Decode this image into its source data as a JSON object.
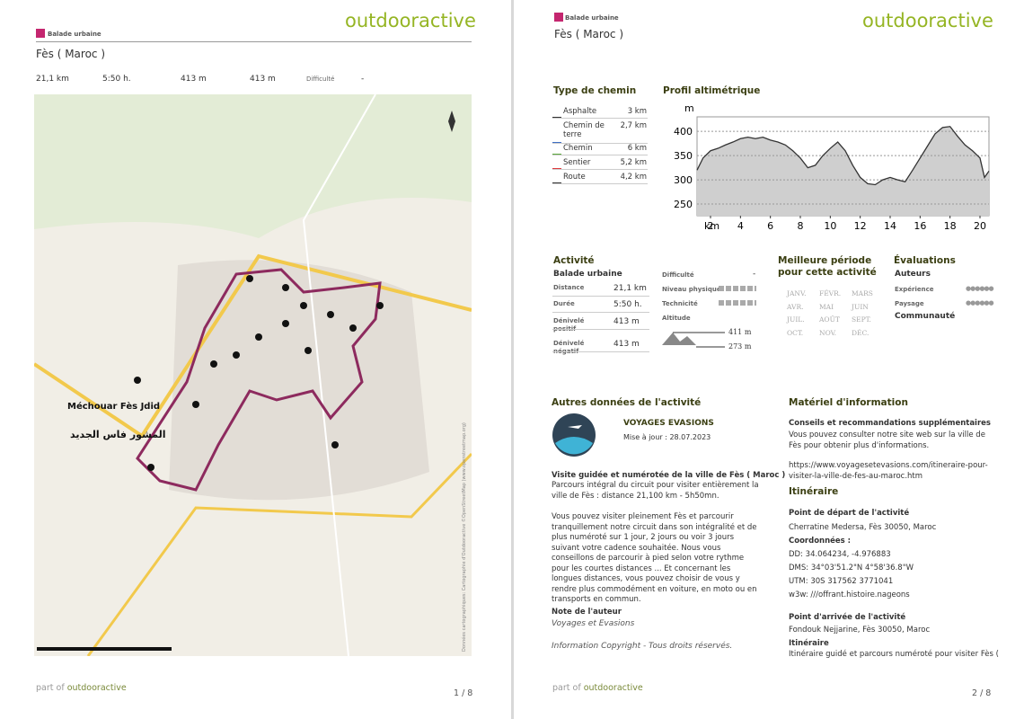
{
  "pages": [
    {
      "brand": "outdooractive",
      "category": "Balade urbaine",
      "title": "Fès ( Maroc )",
      "stats": [
        "21,1 km",
        "5:50 h.",
        "413 m",
        "413 m",
        "Difficulté",
        "-"
      ],
      "map_labels": [
        "Méchouar Fès Jdid",
        "المشور فاس الجديد"
      ],
      "map_credit": "Données cartographiques: Cartographie d'Outdooractive ©OpenStreetMap (www.openstreetmap.org)",
      "footer": {
        "prefix": "part of",
        "brand": "outdooractive",
        "page": "1 / 8"
      }
    },
    {
      "brand": "outdooractive",
      "category": "Balade urbaine",
      "title": "Fès ( Maroc )",
      "path_types": {
        "heading": "Type de chemin",
        "rows": [
          {
            "name": "Asphalte",
            "value": "3 km",
            "color": "#333333"
          },
          {
            "name": "Chemin de terre",
            "value": "2,7 km",
            "color": "#3f6fc4"
          },
          {
            "name": "Chemin",
            "value": "6 km",
            "color": "#5aa83a"
          },
          {
            "name": "Sentier",
            "value": "5,2 km",
            "color": "#e0393e"
          },
          {
            "name": "Route",
            "value": "4,2 km",
            "color": "#333333"
          }
        ]
      },
      "profile": {
        "type": "area",
        "heading": "Profil altimétrique",
        "y_unit": "m",
        "x_unit": "km",
        "x": [
          1.1,
          1.5,
          2,
          2.5,
          3,
          3.5,
          4,
          4.5,
          5,
          5.5,
          6,
          6.5,
          7,
          7.5,
          8,
          8.5,
          9,
          9.5,
          10,
          10.5,
          11,
          11.5,
          12,
          12.5,
          13,
          13.5,
          14,
          14.5,
          15,
          15.5,
          16,
          16.5,
          17,
          17.5,
          18,
          18.5,
          19,
          19.5,
          20,
          20.3,
          20.6
        ],
        "values": [
          320,
          345,
          360,
          365,
          372,
          378,
          385,
          388,
          385,
          388,
          382,
          378,
          372,
          360,
          345,
          325,
          330,
          350,
          365,
          378,
          360,
          330,
          305,
          292,
          290,
          300,
          305,
          300,
          296,
          320,
          345,
          370,
          395,
          408,
          410,
          390,
          372,
          360,
          345,
          305,
          318
        ],
        "xlim": [
          1.1,
          20.6
        ],
        "ylim": [
          226,
          430
        ],
        "xticks": [
          2,
          4,
          6,
          8,
          10,
          12,
          14,
          16,
          18,
          20
        ],
        "yticks": [
          250,
          300,
          350,
          400
        ],
        "grid": true,
        "color": "#333333",
        "fill": "#cfcfcf"
      },
      "activity": {
        "heading": "Activité",
        "kind": "Balade urbaine",
        "rows": [
          {
            "name": "Distance",
            "value": "21,1 km"
          },
          {
            "name": "Durée",
            "value": "5:50 h."
          },
          {
            "name": "Dénivelé positif",
            "value": "413 m"
          },
          {
            "name": "Dénivelé négatif",
            "value": "413 m"
          }
        ],
        "difficulty_label": "Difficulté",
        "difficulty": "-",
        "physical": "Niveau physique",
        "technique": "Technicité",
        "altitude": "Altitude",
        "alt_max": "411 m",
        "alt_min": "273 m"
      },
      "season": {
        "heading": "Meilleure période pour cette activité",
        "months": [
          "JANV.",
          "FÉVR.",
          "MARS",
          "AVR.",
          "MAI",
          "JUIN",
          "JUIL.",
          "AOÛT",
          "SEPT.",
          "OCT.",
          "NOV.",
          "DÉC."
        ]
      },
      "ratings": {
        "heading": "Évaluations",
        "authors": "Auteurs",
        "experience": "Expérience",
        "landscape": "Paysage",
        "community": "Communauté"
      },
      "other": {
        "heading": "Autres données de l'activité",
        "author": "VOYAGES EVASIONS",
        "updated": "Mise à jour : 28.07.2023",
        "desc_title": "Visite guidée et numérotée de la ville de Fès ( Maroc )",
        "desc1": "Parcours intégral du circuit pour visiter entièrement la ville de Fès : distance 21,100 km - 5h50mn.",
        "desc2": "Vous pouvez visiter pleinement Fès et parcourir tranquillement notre circuit dans son intégralité et de plus numéroté sur 1 jour, 2 jours ou voir 3 jours suivant votre cadence souhaitée. Nous vous conseillons de parcourir à pied selon votre rythme pour les courtes distances ... Et concernant les longues distances, vous pouvez choisir de vous y rendre plus commodément en voiture, en moto ou en transports en commun.",
        "note_heading": "Note de l'auteur",
        "note": "Voyages et Evasions",
        "copyright": "Information Copyright - Tous droits réservés."
      },
      "info": {
        "heading": "Matériel d'information",
        "tips_heading": "Conseils et recommandations supplémentaires",
        "tips": "Vous pouvez consulter notre site web sur la ville de Fès pour obtenir plus d'informations.",
        "url": "https://www.voyagesetevasions.com/itineraire-pour-visiter-la-ville-de-fes-au-maroc.htm"
      },
      "route": {
        "heading": "Itinéraire",
        "start_heading": "Point de départ de l'activité",
        "start": "Cherratine Medersa, Fès 30050, Maroc",
        "coords_heading": "Coordonnées :",
        "dd": "DD: 34.064234, -4.976883",
        "dms": "DMS: 34°03'51.2\"N 4°58'36.8\"W",
        "utm": "UTM: 30S 317562 3771041",
        "w3w": "w3w: ///offrant.histoire.nageons",
        "end_heading": "Point d'arrivée de l'activité",
        "end": "Fondouk Nejjarine, Fès 30050, Maroc",
        "itin_heading": "Itinéraire",
        "itin": "Itinéraire guidé et parcours numéroté pour visiter Fès ("
      },
      "footer": {
        "prefix": "part of",
        "brand": "outdooractive",
        "page": "2 / 8"
      }
    }
  ]
}
